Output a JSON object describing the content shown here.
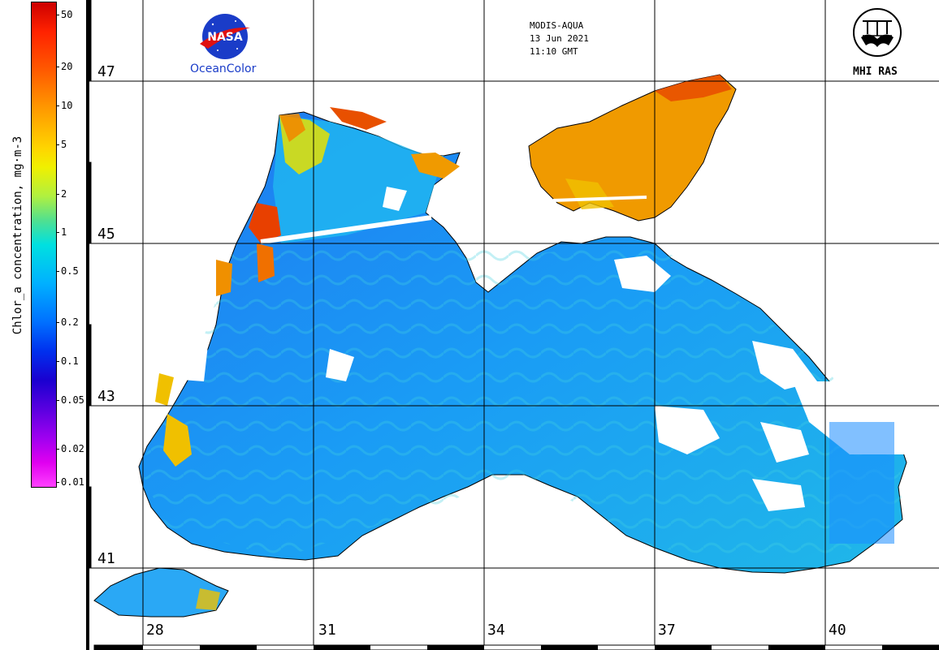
{
  "header": {
    "sensor": "MODIS-AQUA",
    "date": "13 Jun 2021",
    "time": "11:10 GMT"
  },
  "logos": {
    "left_text": "OceanColor",
    "nasa_text": "NASA",
    "right_text": "MHI RAS"
  },
  "colorbar": {
    "label": "Chlor_a concentration, mg·m-3",
    "ticks": [
      "50",
      "20",
      "10",
      "5",
      "2",
      "1",
      "0.5",
      "0.2",
      "0.1",
      "0.05",
      "0.02",
      "0.01"
    ],
    "scale": "log",
    "range": [
      0.01,
      60
    ]
  },
  "grid": {
    "latitudes": [
      "47",
      "45",
      "43",
      "41"
    ],
    "longitudes": [
      "28",
      "31",
      "34",
      "37",
      "40"
    ]
  },
  "colors": {
    "high_chl": "#e03000",
    "mid_chl": "#f0a000",
    "low_chl": "#1a8cff",
    "shelf": "#00c8e8",
    "land": "#ffffff",
    "grid": "#000000"
  }
}
